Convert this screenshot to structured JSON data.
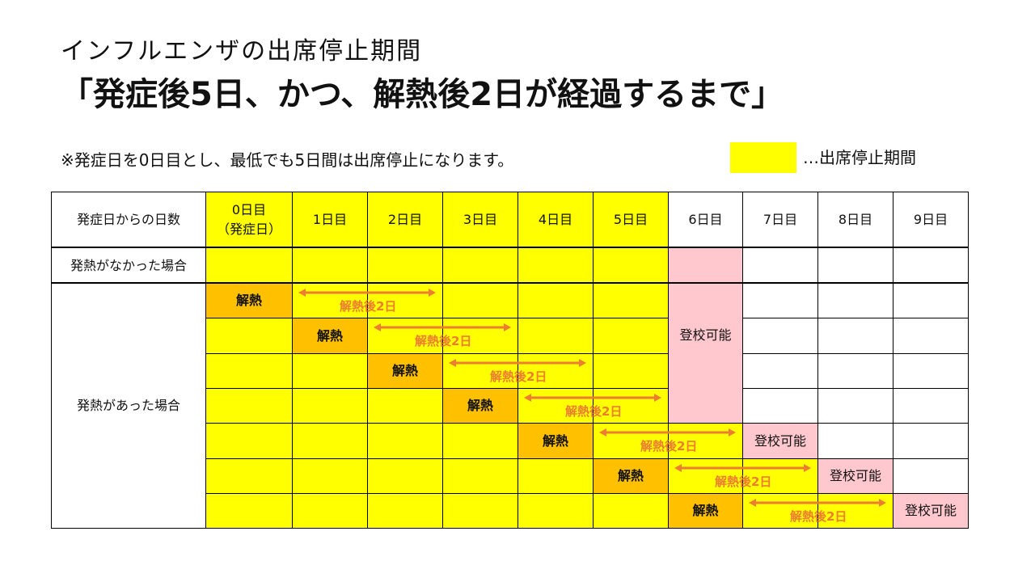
{
  "title": {
    "sub": "インフルエンザの出席停止期間",
    "main": "「発症後5日、かつ、解熱後2日が経過するまで」"
  },
  "note": "※発症日を0日目とし、最低でも5日間は出席停止になります。",
  "legend": {
    "swatch_color": "#ffff00",
    "label": "…出席停止期間"
  },
  "table": {
    "corner_header": "発症日からの日数",
    "day_headers": [
      "0日目\n（発症日）",
      "1日目",
      "2日目",
      "3日目",
      "4日目",
      "5日目",
      "6日目",
      "7日目",
      "8日目",
      "9日目"
    ],
    "row_no_fever_label": "発熱がなかった場合",
    "row_fever_label": "発熱があった場合",
    "fever_reduced_label": "解熱",
    "arrow_label": "解熱後2日",
    "can_attend_label": "登校可能",
    "fever_reduced_days": [
      0,
      1,
      2,
      3,
      4,
      5,
      6
    ],
    "colors": {
      "suspension": "#ffff00",
      "fever_reduced": "#ffc000",
      "can_attend": "#ffc7ce",
      "arrow": "#ed7d31"
    }
  }
}
